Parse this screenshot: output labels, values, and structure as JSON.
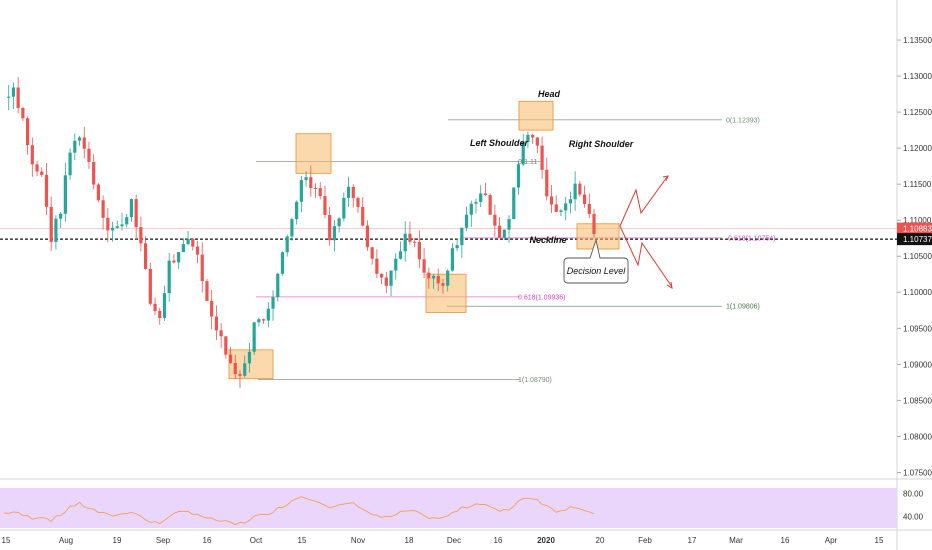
{
  "chart_data": {
    "type": "candlestick",
    "symbol_note": "price chart with head-and-shoulders annotation",
    "x_ticks": [
      "15",
      "Aug",
      "19",
      "Sep",
      "16",
      "Oct",
      "15",
      "Nov",
      "18",
      "Dec",
      "16",
      "2020",
      "20",
      "Feb",
      "17",
      "Mar",
      "16",
      "Apr",
      "15"
    ],
    "y_ticks": [
      "1.13500",
      "1.13000",
      "1.12500",
      "1.12000",
      "1.11500",
      "1.11000",
      "1.10500",
      "1.10000",
      "1.09500",
      "1.09000",
      "1.08500",
      "1.08000",
      "1.07500"
    ],
    "ylim": [
      1.0745,
      1.1375
    ],
    "price_tags": {
      "upper": "1.10883",
      "lower": "1.10737"
    },
    "price_tag_values": [
      1.10883,
      1.10737
    ],
    "rsi": {
      "ticks": [
        "80.00",
        "40.00"
      ],
      "band": [
        30,
        70
      ],
      "ylim": [
        20,
        90
      ]
    },
    "levels": [
      {
        "label": "0(1.12393)",
        "value": 1.12393,
        "color": "#7a8a7a"
      },
      {
        "label": "0(1.11",
        "value": 1.11815,
        "color": "#7a8a7a"
      },
      {
        "label": "0.618(1.10754)",
        "value": 1.10754,
        "color": "#e040c8"
      },
      {
        "label": "0.618(1.09936)",
        "value": 1.09936,
        "color": "#e040c8"
      },
      {
        "label": "1(1.09806)",
        "value": 1.09806,
        "color": "#4a7a4a"
      },
      {
        "label": "1(1.08790)",
        "value": 1.0879,
        "color": "#7a8a7a"
      }
    ],
    "annotations": {
      "head": "Head",
      "left_shoulder": "Left Shoulder",
      "right_shoulder": "Right Shoulder",
      "neckline": "Neckline",
      "decision": "Decision Level"
    },
    "neckline_value": 1.10737,
    "colors": {
      "up": "#26a69a",
      "down": "#ef5350",
      "zone": "#f7b96a",
      "rsi_line": "#f5a05a",
      "rsi_band": "#ead5fb"
    },
    "anchors": [
      {
        "x": 0,
        "y": 1.127,
        "rsi": 46
      },
      {
        "x": 2,
        "y": 1.1285,
        "rsi": 48
      },
      {
        "x": 4,
        "y": 1.124,
        "rsi": 42
      },
      {
        "x": 6,
        "y": 1.1175,
        "rsi": 38
      },
      {
        "x": 8,
        "y": 1.116,
        "rsi": 40
      },
      {
        "x": 10,
        "y": 1.1075,
        "rsi": 34
      },
      {
        "x": 12,
        "y": 1.1115,
        "rsi": 42
      },
      {
        "x": 14,
        "y": 1.1195,
        "rsi": 58
      },
      {
        "x": 16,
        "y": 1.122,
        "rsi": 62
      },
      {
        "x": 18,
        "y": 1.118,
        "rsi": 55
      },
      {
        "x": 20,
        "y": 1.113,
        "rsi": 48
      },
      {
        "x": 22,
        "y": 1.109,
        "rsi": 42
      },
      {
        "x": 25,
        "y": 1.109,
        "rsi": 44
      },
      {
        "x": 27,
        "y": 1.113,
        "rsi": 50
      },
      {
        "x": 29,
        "y": 1.1065,
        "rsi": 40
      },
      {
        "x": 31,
        "y": 1.0985,
        "rsi": 30
      },
      {
        "x": 33,
        "y": 1.0965,
        "rsi": 28
      },
      {
        "x": 35,
        "y": 1.104,
        "rsi": 42
      },
      {
        "x": 37,
        "y": 1.105,
        "rsi": 46
      },
      {
        "x": 39,
        "y": 1.107,
        "rsi": 48
      },
      {
        "x": 41,
        "y": 1.1055,
        "rsi": 45
      },
      {
        "x": 43,
        "y": 1.0985,
        "rsi": 36
      },
      {
        "x": 45,
        "y": 1.0955,
        "rsi": 34
      },
      {
        "x": 47,
        "y": 1.092,
        "rsi": 30
      },
      {
        "x": 49,
        "y": 1.0885,
        "rsi": 26
      },
      {
        "x": 51,
        "y": 1.0895,
        "rsi": 30
      },
      {
        "x": 53,
        "y": 1.0955,
        "rsi": 40
      },
      {
        "x": 55,
        "y": 1.0965,
        "rsi": 42
      },
      {
        "x": 57,
        "y": 1.1,
        "rsi": 50
      },
      {
        "x": 59,
        "y": 1.105,
        "rsi": 58
      },
      {
        "x": 61,
        "y": 1.1105,
        "rsi": 68
      },
      {
        "x": 63,
        "y": 1.116,
        "rsi": 76
      },
      {
        "x": 65,
        "y": 1.115,
        "rsi": 72
      },
      {
        "x": 67,
        "y": 1.1135,
        "rsi": 66
      },
      {
        "x": 69,
        "y": 1.108,
        "rsi": 54
      },
      {
        "x": 71,
        "y": 1.1105,
        "rsi": 58
      },
      {
        "x": 73,
        "y": 1.115,
        "rsi": 64
      },
      {
        "x": 75,
        "y": 1.1125,
        "rsi": 60
      },
      {
        "x": 77,
        "y": 1.107,
        "rsi": 48
      },
      {
        "x": 79,
        "y": 1.1025,
        "rsi": 40
      },
      {
        "x": 81,
        "y": 1.1015,
        "rsi": 38
      },
      {
        "x": 83,
        "y": 1.104,
        "rsi": 42
      },
      {
        "x": 85,
        "y": 1.1075,
        "rsi": 50
      },
      {
        "x": 87,
        "y": 1.1065,
        "rsi": 48
      },
      {
        "x": 89,
        "y": 1.1025,
        "rsi": 40
      },
      {
        "x": 91,
        "y": 1.1015,
        "rsi": 38
      },
      {
        "x": 93,
        "y": 1.1005,
        "rsi": 37
      },
      {
        "x": 95,
        "y": 1.1055,
        "rsi": 46
      },
      {
        "x": 97,
        "y": 1.109,
        "rsi": 54
      },
      {
        "x": 99,
        "y": 1.112,
        "rsi": 60
      },
      {
        "x": 101,
        "y": 1.114,
        "rsi": 64
      },
      {
        "x": 103,
        "y": 1.1115,
        "rsi": 58
      },
      {
        "x": 105,
        "y": 1.108,
        "rsi": 48
      },
      {
        "x": 107,
        "y": 1.11,
        "rsi": 52
      },
      {
        "x": 109,
        "y": 1.118,
        "rsi": 68
      },
      {
        "x": 111,
        "y": 1.1225,
        "rsi": 74
      },
      {
        "x": 113,
        "y": 1.1205,
        "rsi": 70
      },
      {
        "x": 115,
        "y": 1.114,
        "rsi": 58
      },
      {
        "x": 117,
        "y": 1.1105,
        "rsi": 50
      },
      {
        "x": 119,
        "y": 1.1125,
        "rsi": 54
      },
      {
        "x": 121,
        "y": 1.1145,
        "rsi": 58
      },
      {
        "x": 123,
        "y": 1.1125,
        "rsi": 52
      },
      {
        "x": 125,
        "y": 1.1085,
        "rsi": 44
      }
    ]
  }
}
